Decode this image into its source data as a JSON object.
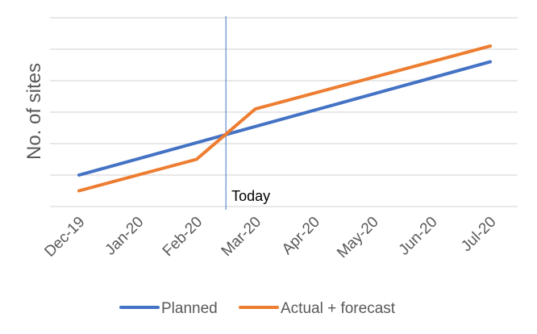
{
  "chart_data": {
    "type": "line",
    "ylabel": "No. of sites",
    "categories": [
      "Dec-19",
      "Jan-20",
      "Feb-20",
      "Mar-20",
      "Apr-20",
      "May-20",
      "Jun-20",
      "Jul-20"
    ],
    "y_axis_tick_labels_shown": false,
    "ylim": [
      0,
      6
    ],
    "y_gridlines": [
      0,
      1,
      2,
      3,
      4,
      5,
      6
    ],
    "grid": "horizontal",
    "legend_position": "bottom",
    "series": [
      {
        "name": "Planned",
        "color": "#4472C4",
        "points": [
          {
            "x": "Dec-19",
            "y": 1.0
          },
          {
            "x": "Jul-20",
            "y": 4.6
          }
        ]
      },
      {
        "name": "Actual + forecast",
        "color": "#ED7D31",
        "points": [
          {
            "x": "Dec-19",
            "y": 0.5
          },
          {
            "x": "Feb-20",
            "y": 1.5
          },
          {
            "x": "Mar-20",
            "y": 3.1
          },
          {
            "x": "Jul-20",
            "y": 5.1
          }
        ]
      }
    ],
    "annotations": [
      {
        "type": "vertical-line",
        "label": "Today",
        "x_between": [
          "Feb-20",
          "Mar-20"
        ],
        "x_fraction": 0.5,
        "color": "#4472C4"
      }
    ]
  }
}
